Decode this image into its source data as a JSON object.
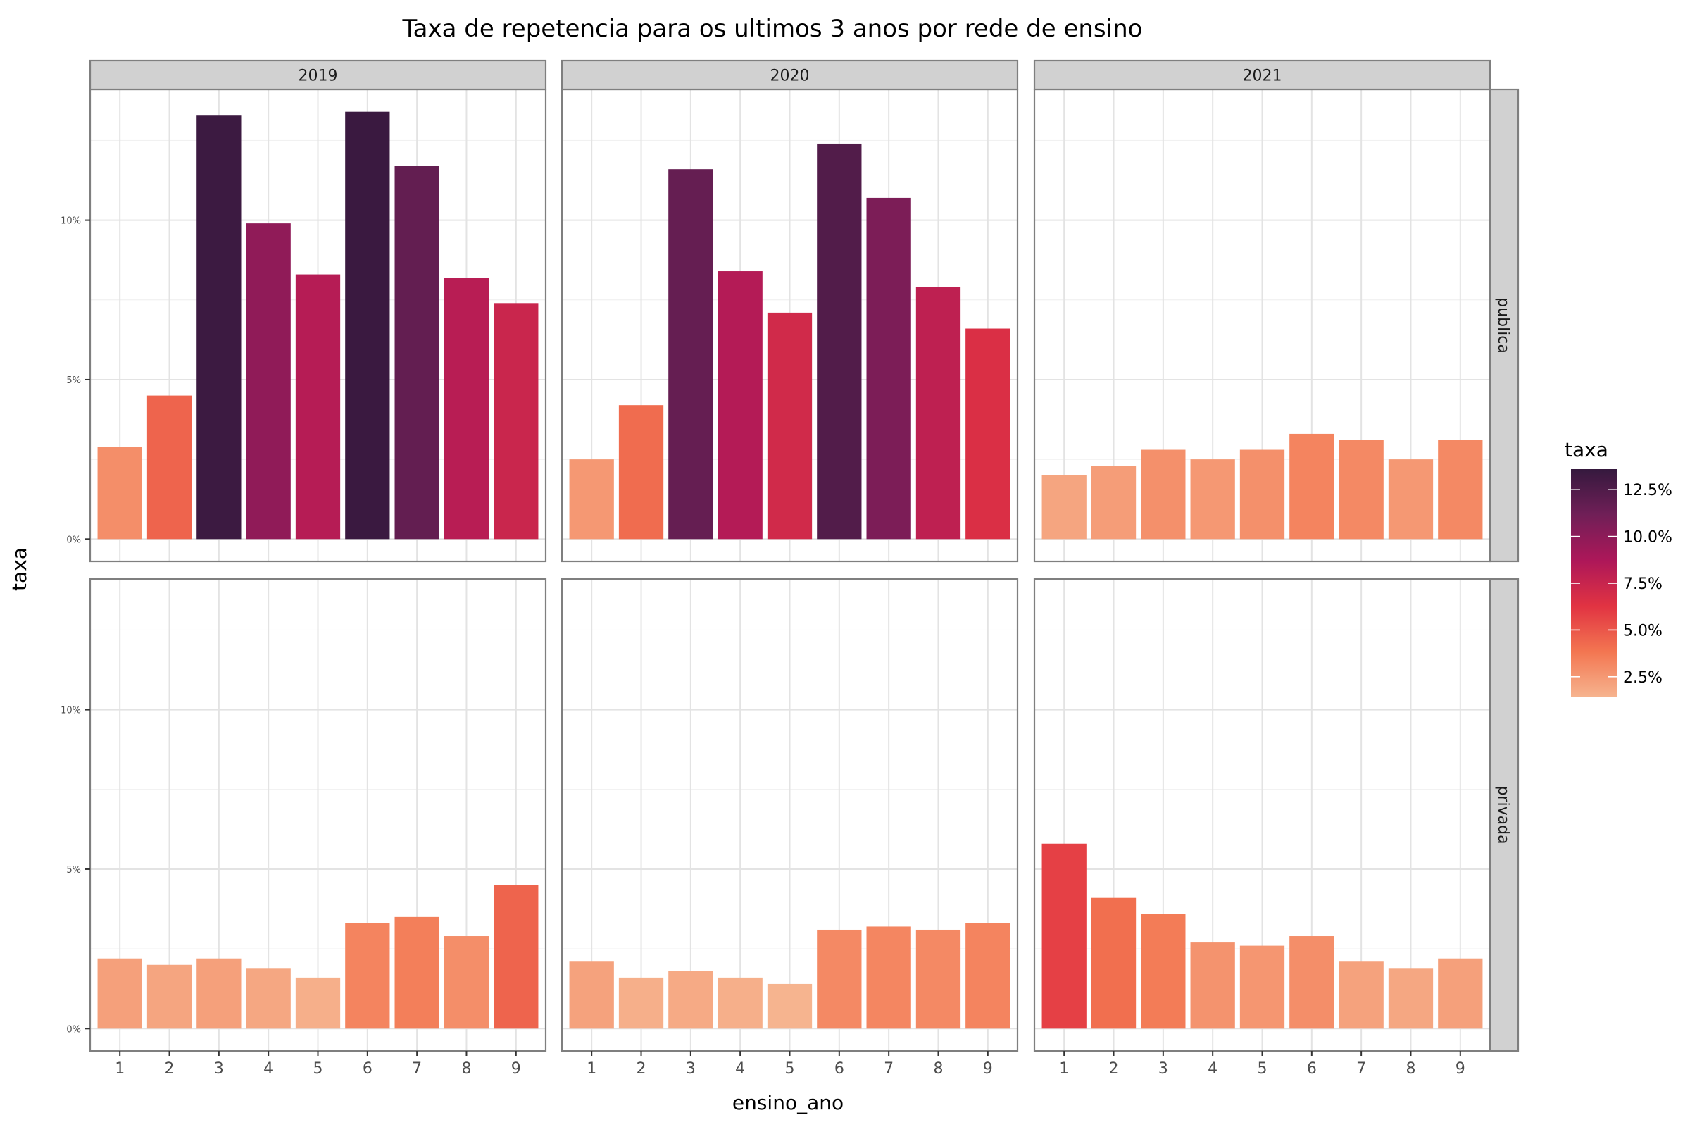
{
  "chart_data": {
    "type": "bar",
    "title": "Taxa de repetencia para os ultimos 3 anos por rede de ensino",
    "xlabel": "ensino_ano",
    "ylabel": "taxa",
    "categories": [
      "1",
      "2",
      "3",
      "4",
      "5",
      "6",
      "7",
      "8",
      "9"
    ],
    "facet_columns": [
      "2019",
      "2020",
      "2021"
    ],
    "facet_rows": [
      "publica",
      "privada"
    ],
    "y_ticks": [
      {
        "value": 0,
        "label": "0%"
      },
      {
        "value": 5,
        "label": "5%"
      },
      {
        "value": 10,
        "label": "10%"
      }
    ],
    "ylim": [
      -0.7,
      14.1
    ],
    "grid": true,
    "legend": {
      "title": "taxa",
      "position": "right",
      "range": [
        1.4,
        13.6
      ],
      "ticks": [
        {
          "value": 12.5,
          "label": "12.5%"
        },
        {
          "value": 10.0,
          "label": "10.0%"
        },
        {
          "value": 7.5,
          "label": "7.5%"
        },
        {
          "value": 5.0,
          "label": "5.0%"
        },
        {
          "value": 2.5,
          "label": "2.5%"
        }
      ],
      "colors": [
        "#f6b48f",
        "#f37651",
        "#e13342",
        "#ad1759",
        "#701f57",
        "#35193e"
      ]
    },
    "panels": [
      {
        "column": "2019",
        "row": "publica",
        "values": [
          2.9,
          4.5,
          13.3,
          9.9,
          8.3,
          13.4,
          11.7,
          8.2,
          7.4
        ]
      },
      {
        "column": "2020",
        "row": "publica",
        "values": [
          2.5,
          4.2,
          11.6,
          8.4,
          7.1,
          12.4,
          10.7,
          7.9,
          6.6
        ]
      },
      {
        "column": "2021",
        "row": "publica",
        "values": [
          2.0,
          2.3,
          2.8,
          2.5,
          2.8,
          3.3,
          3.1,
          2.5,
          3.1
        ]
      },
      {
        "column": "2019",
        "row": "privada",
        "values": [
          2.2,
          2.0,
          2.2,
          1.9,
          1.6,
          3.3,
          3.5,
          2.9,
          4.5
        ]
      },
      {
        "column": "2020",
        "row": "privada",
        "values": [
          2.1,
          1.6,
          1.8,
          1.6,
          1.4,
          3.1,
          3.2,
          3.1,
          3.3
        ]
      },
      {
        "column": "2021",
        "row": "privada",
        "values": [
          5.8,
          4.1,
          3.6,
          2.7,
          2.6,
          2.9,
          2.1,
          1.9,
          2.2
        ]
      }
    ]
  }
}
